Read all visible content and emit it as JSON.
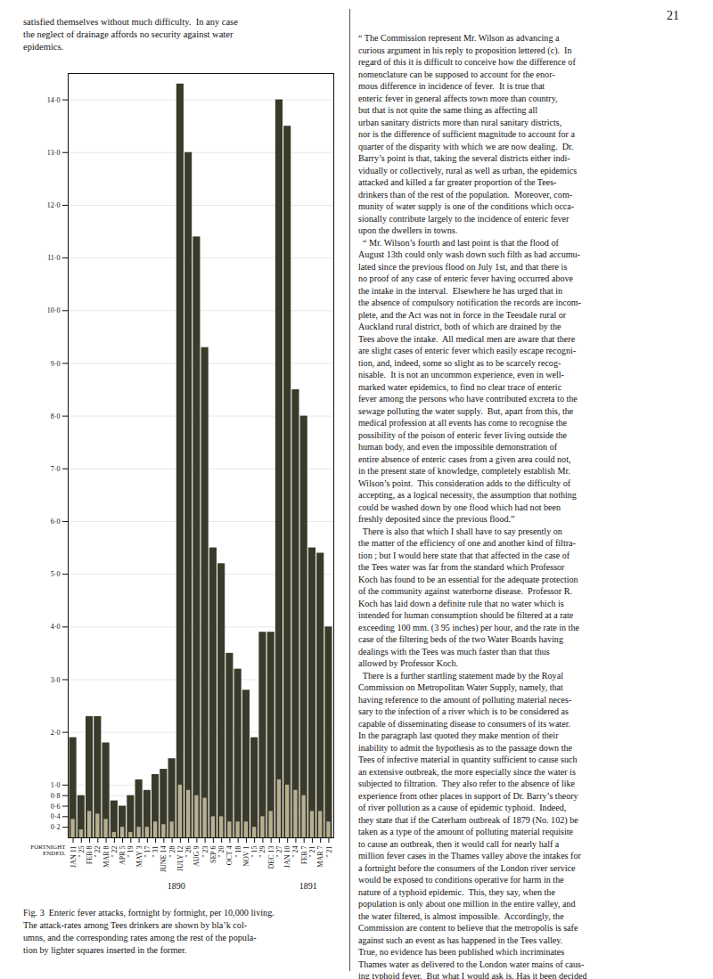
{
  "chart_data": {
    "type": "bar",
    "categories": [
      "JAN 11",
      "\" 25",
      "FEB 8",
      "\" 22",
      "MAR 8",
      "\" 22",
      "APR 5",
      "\" 19",
      "MAY 3",
      "\" 17",
      "\" 31",
      "JUNE 14",
      "\" 28",
      "JULY 12",
      "\" 26",
      "AUG 9",
      "\" 23",
      "SEP 6",
      "\" 20",
      "OCT 4",
      "\" 18",
      "NOV 1",
      "\" 15",
      "\" 29",
      "DEC 13",
      "\" 27",
      "JAN 10",
      "\" 24",
      "FEB 7",
      "\" 21",
      "MAR 7",
      "\" 21"
    ],
    "series": [
      {
        "color": "#3a3a2a",
        "values": [
          1.9,
          0.8,
          2.3,
          2.3,
          1.8,
          0.7,
          0.6,
          0.8,
          1.1,
          0.9,
          1.2,
          1.3,
          1.5,
          14.3,
          13.0,
          11.4,
          9.3,
          5.5,
          5.2,
          3.5,
          3.2,
          2.8,
          1.9,
          3.9,
          3.9,
          14.0,
          13.5,
          8.5,
          8.0,
          5.5,
          5.4,
          4.0
        ]
      },
      {
        "color": "#b8b090",
        "values": [
          0.35,
          0.15,
          0.5,
          0.45,
          0.35,
          0.1,
          0.2,
          0.1,
          0.2,
          0.2,
          0.3,
          0.25,
          0.3,
          1.0,
          0.9,
          0.8,
          0.75,
          0.4,
          0.4,
          0.3,
          0.3,
          0.3,
          0.2,
          0.4,
          0.5,
          1.1,
          1.0,
          0.9,
          0.8,
          0.5,
          0.5,
          0.3
        ]
      }
    ],
    "xlabel": "FORTNIGHT\nENDED.",
    "annotations": [
      "1890",
      "1891"
    ],
    "ylim": [
      0,
      14.5
    ],
    "yticks": [
      {
        "value": 0.2,
        "label": "0·2"
      },
      {
        "value": 0.4,
        "label": "0·4"
      },
      {
        "value": 0.6,
        "label": "0·6"
      },
      {
        "value": 0.8,
        "label": "0·8"
      },
      {
        "value": 1.0,
        "label": "1·0"
      },
      {
        "value": 2.0,
        "label": "2·0"
      },
      {
        "value": 3.0,
        "label": "3·0"
      },
      {
        "value": 4.0,
        "label": "4·0"
      },
      {
        "value": 5.0,
        "label": "5·0"
      },
      {
        "value": 6.0,
        "label": "6·0"
      },
      {
        "value": 7.0,
        "label": "7·0"
      },
      {
        "value": 8.0,
        "label": "8·0"
      },
      {
        "value": 9.0,
        "label": "9·0"
      },
      {
        "value": 10.0,
        "label": "10·0"
      },
      {
        "value": 11.0,
        "label": "11·0"
      },
      {
        "value": 12.0,
        "label": "12·0"
      },
      {
        "value": 13.0,
        "label": "13·0"
      },
      {
        "value": 14.0,
        "label": "14·0"
      }
    ],
    "grid": true,
    "caption": [
      "Fig. 3  Enteric fever attacks, fortnight by fortnight, per 10,000 living.",
      "The attack-rates among Tees drinkers are shown by bla’k col-",
      "umns, and the corresponding rates among the rest of the popula-",
      "tion by lighter squares inserted in the former."
    ],
    "page_text_top": [
      "satisfied themselves without much difficulty.  In any case",
      "the neglect of drainage affords no security against water",
      "epidemics."
    ],
    "page_number": "21",
    "page_text_right": [
      "“ The Commission represent Mr. Wilson as advancing a",
      "curious argument in his reply to proposition lettered (c).  In",
      "regard of this it is difficult to conceive how the difference of",
      "nomenclature can be supposed to account for the enor-",
      "mous difference in incidence of fever.  It is true that",
      "enteric fever in general affects town more than country,",
      "but that is not quite the same thing as affecting all",
      "urban sanitary districts more than rural sanitary districts,",
      "nor is the difference of sufficient magnitude to account for a",
      "quarter of the disparity with which we are now dealing.  Dr.",
      "Barry’s point is that, taking the several districts either indi-",
      "vidually or collectively, rural as well as urban, the epidemics",
      "attacked and killed a far greater proportion of the Tees-",
      "drinkers than of the rest of the population.  Moreover, com-",
      "munity of water supply is one of the conditions which occa-",
      "sionally contribute largely to the incidence of enteric fever",
      "upon the dwellers in towns.",
      "  “ Mr. Wilson’s fourth and last point is that the flood of",
      "August 13th could only wash down such filth as had accumu-",
      "lated since the previous flood on July 1st, and that there is",
      "no proof of any case of enteric fever having occurred above",
      "the intake in the interval.  Elsewhere he has urged that in",
      "the absence of compulsory notification the records are incom-",
      "plete, and the Act was not in force in the Teesdale rural or",
      "Auckland rural district, both of which are drained by the",
      "Tees above the intake.  All medical men are aware that there",
      "are slight cases of enteric fever which easily escape recogni-",
      "tion, and, indeed, some so slight as to be scarcely recog-",
      "nisable.  It is not an uncommon experience, even in well-",
      "marked water epidemics, to find no clear trace of enteric",
      "fever among the persons who have contributed excreta to the",
      "sewage polluting the water supply.  But, apart from this, the",
      "medical profession at all events has come to recognise the",
      "possibility of the poison of enteric fever living outside the",
      "human body, and even the impossible demonstration of",
      "entire absence of enteric cases from a given area could not,",
      "in the present state of knowledge, completely establish Mr.",
      "Wilson’s point.  This consideration adds to the difficulty of",
      "accepting, as a logical necessity, the assumption that nothing",
      "could be washed down by one flood which had not been",
      "freshly deposited since the previous flood.”",
      "  There is also that which I shall have to say presently on",
      "the matter of the efficiency of one and another kind of filtra-",
      "tion ; but I would here state that that affected in the case of",
      "the Tees water was far from the standard which Professor",
      "Koch has found to be an essential for the adequate protection",
      "of the community against waterborne disease.  Professor R.",
      "Koch has laid down a definite rule that no water which is",
      "intended for human consumption should be filtered at a rate",
      "exceeding 100 mm. (3 95 inches) per hour, and the rate in the",
      "case of the filtering beds of the two Water Boards having",
      "dealings with the Tees was much faster than that thus",
      "allowed by Professor Koch.",
      "  There is a further startling statement made by the Royal",
      "Commission on Metropolitan Water Supply, namely, that",
      "having reference to the amount of polluting material neces-",
      "sary to the infection of a river which is to be considered as",
      "capable of disseminating disease to consumers of its water.",
      "In the paragraph last quoted they make mention of their",
      "inability to admit the hypothesis as to the passage down the",
      "Tees of infective material in quantity sufficient to cause such",
      "an extensive outbreak, the more especially since the water is",
      "subjected to filtration.  They also refer to the absence of like",
      "experience from other places in support of Dr. Barry’s theory",
      "of river pollution as a cause of epidemic typhoid.  Indeed,",
      "they state that if the Caterham outbreak of 1879 (No. 102) be",
      "taken as a type of the amount of polluting material requisite",
      "to cause an outbreak, then it would call for nearly half a",
      "million fever cases in the Thames valley above the intakes for",
      "a fortnight before the consumers of the London river service",
      "would be exposed to conditions operative for harm in the",
      "nature of a typhoid epidemic.  This, they say, when the",
      "population is only about one million in the entire valley, and",
      "the water filtered, is almost impossible.  Accordingly, the",
      "Commission are content to believe that the metropolis is safe",
      "against such an event as has happened in the Tees valley.",
      "True, no evidence has been published which incriminates",
      "Thames water as delivered to the London water mains of caus-",
      "ing typhoid fever.  But what I would ask is, Has it been decided"
    ]
  }
}
